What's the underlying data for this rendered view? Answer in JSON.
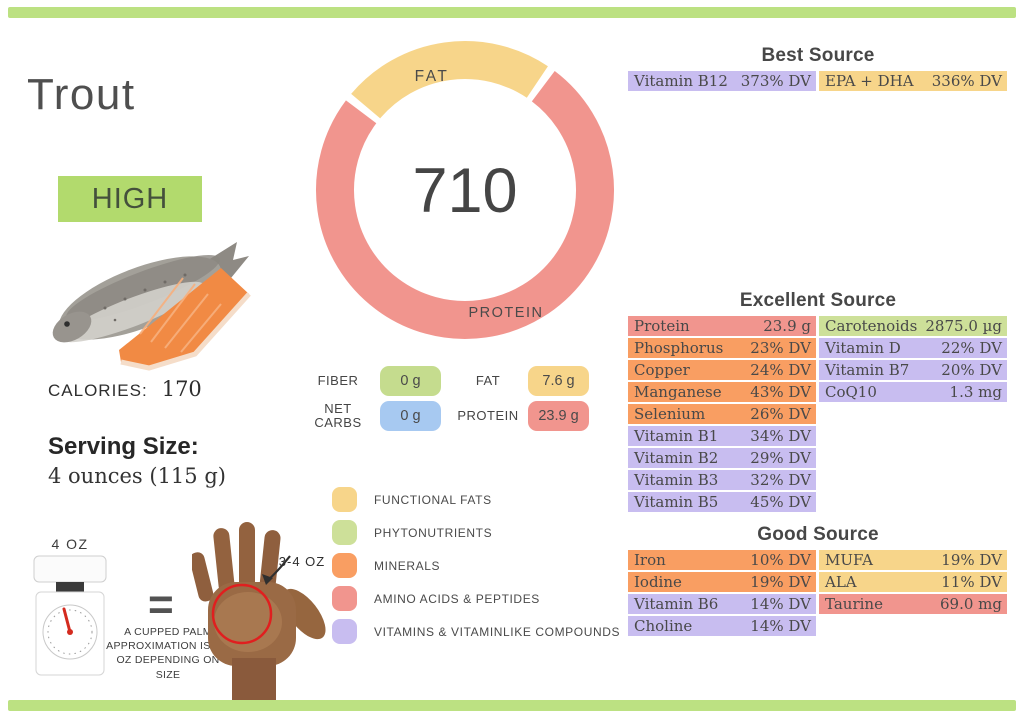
{
  "header": {
    "title": "Trout",
    "badge": "HIGH"
  },
  "stats": {
    "calories_label": "CALORIES:",
    "calories_value": "170",
    "serving_size_label": "Serving Size:",
    "serving_size_value": "4 ounces (115 g)"
  },
  "serving_visual": {
    "scale_label": "4 OZ",
    "equals_symbol": "=",
    "hand_label": "3-4 OZ",
    "caption": "A CUPPED PALM APPROXIMATION IS 3-4 OZ DEPENDING ON SIZE"
  },
  "colors": {
    "functional_fats": "#f7d58a",
    "phytonutrients": "#cde099",
    "minerals": "#f99e62",
    "amino_acids": "#f1958e",
    "vitamins": "#c8bdf0",
    "fiber": "#c5dc8e",
    "net_carbs": "#a7c9f1",
    "badge_green": "#b2da6d",
    "border_green": "#bce182"
  },
  "chart_data": {
    "type": "pie",
    "style": "donut",
    "center_value": "710",
    "units": "g",
    "segments": [
      {
        "label": "FAT",
        "value": 7.6,
        "category": "functional_fats"
      },
      {
        "label": "PROTEIN",
        "value": 23.9,
        "category": "amino_acids"
      }
    ]
  },
  "macros": {
    "rows": [
      {
        "label": "FIBER",
        "value": "0 g",
        "category": "fiber"
      },
      {
        "label": "FAT",
        "value": "7.6 g",
        "category": "functional_fats"
      },
      {
        "label": "NET CARBS",
        "value": "0 g",
        "category": "net_carbs"
      },
      {
        "label": "PROTEIN",
        "value": "23.9 g",
        "category": "amino_acids"
      }
    ]
  },
  "legend": [
    {
      "label": "FUNCTIONAL  FATS",
      "category": "functional_fats"
    },
    {
      "label": "PHYTONUTRIENTS",
      "category": "phytonutrients"
    },
    {
      "label": "MINERALS",
      "category": "minerals"
    },
    {
      "label": "AMINO ACIDS & PEPTIDES",
      "category": "amino_acids"
    },
    {
      "label": "VITAMINS & VITAMINLIKE COMPOUNDS",
      "category": "vitamins"
    }
  ],
  "sources": [
    {
      "title": "Best Source",
      "columns": [
        [
          {
            "name": "Vitamin B12",
            "value": "373% DV",
            "category": "vitamins"
          }
        ],
        [
          {
            "name": "EPA + DHA",
            "value": "336% DV",
            "category": "functional_fats"
          }
        ]
      ]
    },
    {
      "title": "Excellent Source",
      "columns": [
        [
          {
            "name": "Protein",
            "value": "23.9 g",
            "category": "amino_acids"
          },
          {
            "name": "Phosphorus",
            "value": "23% DV",
            "category": "minerals"
          },
          {
            "name": "Copper",
            "value": "24% DV",
            "category": "minerals"
          },
          {
            "name": "Manganese",
            "value": "43% DV",
            "category": "minerals"
          },
          {
            "name": "Selenium",
            "value": "26% DV",
            "category": "minerals"
          },
          {
            "name": "Vitamin B1",
            "value": "34% DV",
            "category": "vitamins"
          },
          {
            "name": "Vitamin B2",
            "value": "29% DV",
            "category": "vitamins"
          },
          {
            "name": "Vitamin B3",
            "value": "32% DV",
            "category": "vitamins"
          },
          {
            "name": "Vitamin B5",
            "value": "45% DV",
            "category": "vitamins"
          }
        ],
        [
          {
            "name": "Carotenoids",
            "value": "2875.0 µg",
            "category": "phytonutrients"
          },
          {
            "name": "Vitamin D",
            "value": "22% DV",
            "category": "vitamins"
          },
          {
            "name": "Vitamin B7",
            "value": "20% DV",
            "category": "vitamins"
          },
          {
            "name": "CoQ10",
            "value": "1.3 mg",
            "category": "vitamins"
          }
        ]
      ]
    },
    {
      "title": "Good Source",
      "columns": [
        [
          {
            "name": "Iron",
            "value": "10% DV",
            "category": "minerals"
          },
          {
            "name": "Iodine",
            "value": "19% DV",
            "category": "minerals"
          },
          {
            "name": "Vitamin B6",
            "value": "14% DV",
            "category": "vitamins"
          },
          {
            "name": "Choline",
            "value": "14% DV",
            "category": "vitamins"
          }
        ],
        [
          {
            "name": "MUFA",
            "value": "19% DV",
            "category": "functional_fats"
          },
          {
            "name": "ALA",
            "value": "11% DV",
            "category": "functional_fats"
          },
          {
            "name": "Taurine",
            "value": "69.0 mg",
            "category": "amino_acids"
          }
        ]
      ]
    }
  ]
}
